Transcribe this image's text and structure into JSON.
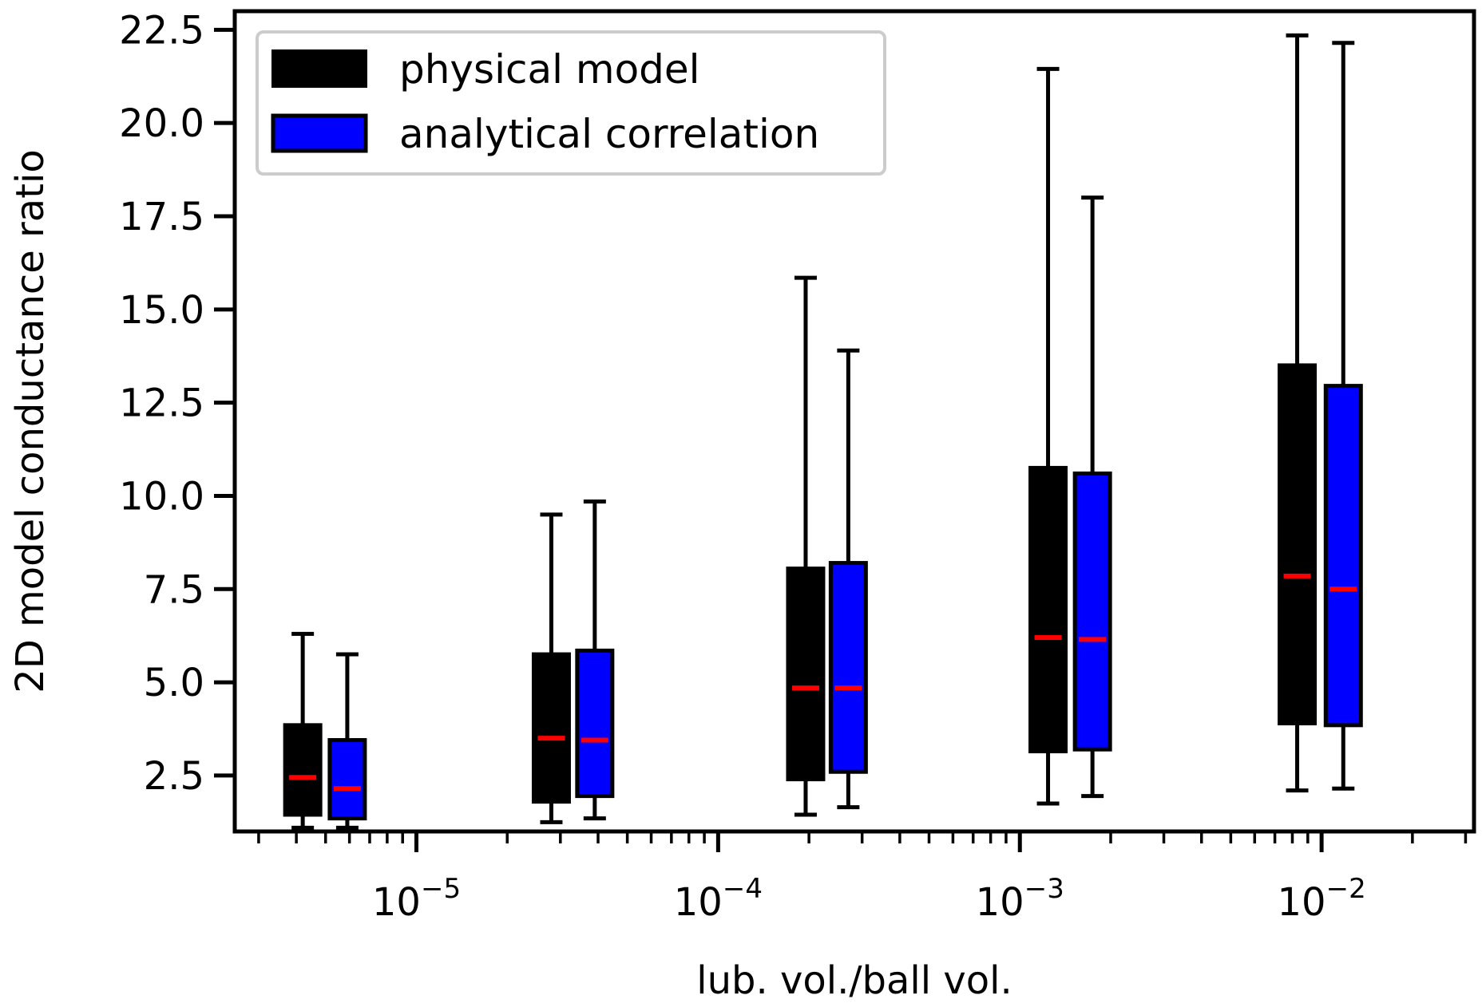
{
  "chart_data": {
    "type": "box",
    "title": "",
    "xlabel": "lub. vol./ball vol.",
    "ylabel": "2D model conductance ratio",
    "x_scale": "log",
    "xlim": [
      2.5e-06,
      0.032
    ],
    "ylim": [
      1.0,
      23.0
    ],
    "y_ticks": [
      2.5,
      5.0,
      7.5,
      10.0,
      12.5,
      15.0,
      17.5,
      20.0,
      22.5
    ],
    "y_tick_labels": [
      "2.5",
      "5.0",
      "7.5",
      "10.0",
      "12.5",
      "15.0",
      "17.5",
      "20.0",
      "22.5"
    ],
    "x_ticks": [
      {
        "value": 1e-05,
        "base": "10",
        "exp": "−5"
      },
      {
        "value": 0.0001,
        "base": "10",
        "exp": "−4"
      },
      {
        "value": 0.001,
        "base": "10",
        "exp": "−3"
      },
      {
        "value": 0.01,
        "base": "10",
        "exp": "−2"
      }
    ],
    "grid": false,
    "legend_position": "top-left",
    "colors": {
      "physical": "#000000",
      "analytical": "#0000ff",
      "median": "#ff0000",
      "edge": "#000000"
    },
    "series": [
      {
        "name": "physical model",
        "color": "#000000",
        "boxes": [
          {
            "x": 4.2e-06,
            "whisker_low": 1.1,
            "q1": 1.45,
            "median": 2.45,
            "q3": 3.85,
            "whisker_high": 6.3
          },
          {
            "x": 2.8e-05,
            "whisker_low": 1.25,
            "q1": 1.8,
            "median": 3.5,
            "q3": 5.75,
            "whisker_high": 9.5
          },
          {
            "x": 0.000195,
            "whisker_low": 1.45,
            "q1": 2.4,
            "median": 4.85,
            "q3": 8.05,
            "whisker_high": 15.85
          },
          {
            "x": 0.00124,
            "whisker_low": 1.75,
            "q1": 3.15,
            "median": 6.2,
            "q3": 10.75,
            "whisker_high": 21.45
          },
          {
            "x": 0.0083,
            "whisker_low": 2.1,
            "q1": 3.9,
            "median": 7.85,
            "q3": 13.5,
            "whisker_high": 22.35
          }
        ]
      },
      {
        "name": "analytical correlation",
        "color": "#0000ff",
        "boxes": [
          {
            "x": 5.9e-06,
            "whisker_low": 1.1,
            "q1": 1.35,
            "median": 2.15,
            "q3": 3.45,
            "whisker_high": 5.75
          },
          {
            "x": 3.9e-05,
            "whisker_low": 1.35,
            "q1": 1.95,
            "median": 3.45,
            "q3": 5.85,
            "whisker_high": 9.85
          },
          {
            "x": 0.00027,
            "whisker_low": 1.65,
            "q1": 2.6,
            "median": 4.85,
            "q3": 8.2,
            "whisker_high": 13.9
          },
          {
            "x": 0.00174,
            "whisker_low": 1.95,
            "q1": 3.2,
            "median": 6.15,
            "q3": 10.6,
            "whisker_high": 18.0
          },
          {
            "x": 0.0118,
            "whisker_low": 2.15,
            "q1": 3.85,
            "median": 7.5,
            "q3": 12.95,
            "whisker_high": 22.15
          }
        ]
      }
    ]
  }
}
